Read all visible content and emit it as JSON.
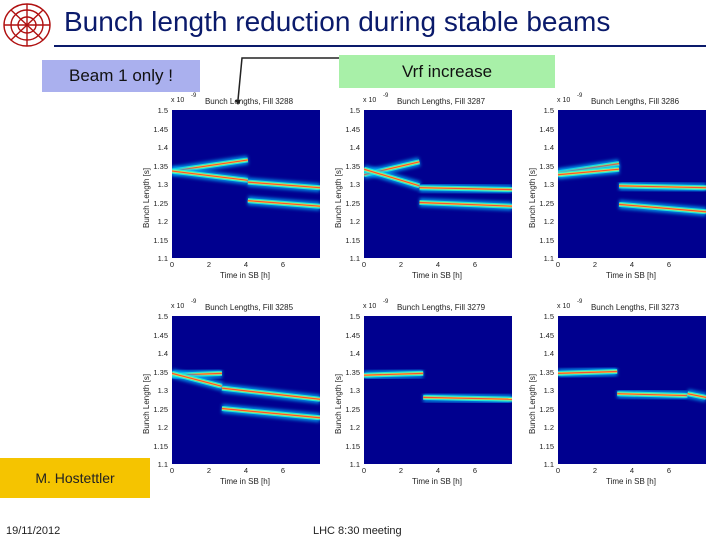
{
  "slide": {
    "title": "Bunch length reduction during stable beams",
    "beam_tag": "Beam 1 only !",
    "vrf_tag": "Vrf increase",
    "author_tag": "M. Hostettler",
    "footer_date": "19/11/2012",
    "footer_meeting": "LHC 8:30 meeting"
  },
  "colors": {
    "title": "#0a1a6b",
    "beam_tag_bg": "#aab0ee",
    "vrf_tag_bg": "#a8f0a8",
    "author_tag_bg": "#f5c400",
    "plot_bg": "#00008f"
  },
  "chart_data": [
    {
      "type": "heatmap",
      "title": "Bunch Lengths, Fill 3288",
      "exponent": "x 10",
      "exponent_power": "-9",
      "xlabel": "Time in SB [h]",
      "ylabel": "Bunch Length [s]",
      "xlim": [
        0,
        8
      ],
      "ylim": [
        1.1,
        1.5
      ],
      "x_ticks": [
        "0",
        "2",
        "4",
        "6"
      ],
      "y_ticks": [
        "1.5",
        "1.45",
        "1.4",
        "1.35",
        "1.3",
        "1.25",
        "1.2",
        "1.15",
        "1.1"
      ],
      "step_time_h": 4.1,
      "bands": [
        {
          "x_start": 0,
          "x_end": 4.1,
          "y_start": 1.335,
          "y_end": 1.365
        },
        {
          "x_start": 0,
          "x_end": 4.1,
          "y_start": 1.335,
          "y_end": 1.31
        },
        {
          "x_start": 4.1,
          "x_end": 8,
          "y_start": 1.305,
          "y_end": 1.29
        },
        {
          "x_start": 4.1,
          "x_end": 8,
          "y_start": 1.255,
          "y_end": 1.24
        }
      ]
    },
    {
      "type": "heatmap",
      "title": "Bunch Lengths, Fill 3287",
      "exponent": "x 10",
      "exponent_power": "-9",
      "xlabel": "Time in SB [h]",
      "ylabel": "Bunch Length [s]",
      "xlim": [
        0,
        8
      ],
      "ylim": [
        1.1,
        1.5
      ],
      "x_ticks": [
        "0",
        "2",
        "4",
        "6"
      ],
      "y_ticks": [
        "1.5",
        "1.45",
        "1.4",
        "1.35",
        "1.3",
        "1.25",
        "1.2",
        "1.15",
        "1.1"
      ],
      "step_time_h": 3.0,
      "bands": [
        {
          "x_start": 0,
          "x_end": 3.0,
          "y_start": 1.325,
          "y_end": 1.36
        },
        {
          "x_start": 0,
          "x_end": 3.0,
          "y_start": 1.34,
          "y_end": 1.295
        },
        {
          "x_start": 3.0,
          "x_end": 8,
          "y_start": 1.29,
          "y_end": 1.285
        },
        {
          "x_start": 3.0,
          "x_end": 8,
          "y_start": 1.25,
          "y_end": 1.24
        }
      ]
    },
    {
      "type": "heatmap",
      "title": "Bunch Lengths, Fill 3286",
      "exponent": "x 10",
      "exponent_power": "-9",
      "xlabel": "Time in SB [h]",
      "ylabel": "Bunch Length [s]",
      "xlim": [
        0,
        8
      ],
      "ylim": [
        1.1,
        1.5
      ],
      "x_ticks": [
        "0",
        "2",
        "4",
        "6"
      ],
      "y_ticks": [
        "1.5",
        "1.45",
        "1.4",
        "1.35",
        "1.3",
        "1.25",
        "1.2",
        "1.15",
        "1.1"
      ],
      "step_time_h": 3.3,
      "bands": [
        {
          "x_start": 0,
          "x_end": 3.3,
          "y_start": 1.33,
          "y_end": 1.355
        },
        {
          "x_start": 0,
          "x_end": 3.3,
          "y_start": 1.325,
          "y_end": 1.34
        },
        {
          "x_start": 3.3,
          "x_end": 8,
          "y_start": 1.295,
          "y_end": 1.29
        },
        {
          "x_start": 3.3,
          "x_end": 8,
          "y_start": 1.245,
          "y_end": 1.225
        }
      ]
    },
    {
      "type": "heatmap",
      "title": "Bunch Lengths, Fill 3285",
      "exponent": "x 10",
      "exponent_power": "-9",
      "xlabel": "Time in SB [h]",
      "ylabel": "Bunch Length [s]",
      "xlim": [
        0,
        8
      ],
      "ylim": [
        1.1,
        1.5
      ],
      "x_ticks": [
        "0",
        "2",
        "4",
        "6"
      ],
      "y_ticks": [
        "1.5",
        "1.45",
        "1.4",
        "1.35",
        "1.3",
        "1.25",
        "1.2",
        "1.15",
        "1.1"
      ],
      "step_time_h": 2.7,
      "bands": [
        {
          "x_start": 0,
          "x_end": 2.7,
          "y_start": 1.34,
          "y_end": 1.345
        },
        {
          "x_start": 0,
          "x_end": 2.7,
          "y_start": 1.345,
          "y_end": 1.31
        },
        {
          "x_start": 2.7,
          "x_end": 8,
          "y_start": 1.305,
          "y_end": 1.275
        },
        {
          "x_start": 2.7,
          "x_end": 8,
          "y_start": 1.25,
          "y_end": 1.225
        }
      ]
    },
    {
      "type": "heatmap",
      "title": "Bunch Lengths, Fill 3279",
      "exponent": "x 10",
      "exponent_power": "-9",
      "xlabel": "Time in SB [h]",
      "ylabel": "Bunch Length [s]",
      "xlim": [
        0,
        8
      ],
      "ylim": [
        1.1,
        1.5
      ],
      "x_ticks": [
        "0",
        "2",
        "4",
        "6"
      ],
      "y_ticks": [
        "1.5",
        "1.45",
        "1.4",
        "1.35",
        "1.3",
        "1.25",
        "1.2",
        "1.15",
        "1.1"
      ],
      "step_time_h": 3.2,
      "bands": [
        {
          "x_start": 0,
          "x_end": 3.2,
          "y_start": 1.34,
          "y_end": 1.345
        },
        {
          "x_start": 3.2,
          "x_end": 8,
          "y_start": 1.28,
          "y_end": 1.275
        }
      ]
    },
    {
      "type": "heatmap",
      "title": "Bunch Lengths, Fill 3273",
      "exponent": "x 10",
      "exponent_power": "-9",
      "xlabel": "Time in SB [h]",
      "ylabel": "Bunch Length [s]",
      "xlim": [
        0,
        8
      ],
      "ylim": [
        1.1,
        1.5
      ],
      "x_ticks": [
        "0",
        "2",
        "4",
        "6"
      ],
      "y_ticks": [
        "1.5",
        "1.45",
        "1.4",
        "1.35",
        "1.3",
        "1.25",
        "1.2",
        "1.15",
        "1.1"
      ],
      "step_time_h": 3.2,
      "bands": [
        {
          "x_start": 0,
          "x_end": 3.2,
          "y_start": 1.345,
          "y_end": 1.35
        },
        {
          "x_start": 3.2,
          "x_end": 7.0,
          "y_start": 1.29,
          "y_end": 1.285
        },
        {
          "x_start": 7.0,
          "x_end": 8,
          "y_start": 1.29,
          "y_end": 1.28
        }
      ]
    }
  ]
}
